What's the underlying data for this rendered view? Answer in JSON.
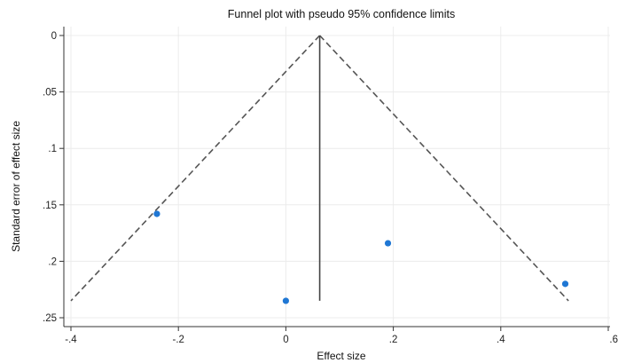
{
  "chart_data": {
    "type": "scatter",
    "title": "Funnel plot with pseudo 95% confidence limits",
    "xlabel": "Effect size",
    "ylabel": "Standard error of effect size",
    "xlim": [
      -0.4,
      0.6
    ],
    "ylim": [
      0.25,
      0
    ],
    "y_reversed": true,
    "x_ticks": [
      -0.4,
      -0.2,
      0,
      0.2,
      0.4,
      0.6
    ],
    "x_tick_labels": [
      "-.4",
      "-.2",
      "0",
      ".2",
      ".4",
      ".6"
    ],
    "y_ticks": [
      0,
      0.05,
      0.1,
      0.15,
      0.2,
      0.25
    ],
    "y_tick_labels": [
      "0",
      ".05",
      ".1",
      ".15",
      ".2",
      ".25"
    ],
    "grid": true,
    "point_color": "#1f77d4",
    "points": [
      {
        "x": -0.24,
        "y": 0.158
      },
      {
        "x": 0.0,
        "y": 0.235
      },
      {
        "x": 0.19,
        "y": 0.184
      },
      {
        "x": 0.52,
        "y": 0.22
      }
    ],
    "summary_effect": 0.063,
    "summary_line_range": [
      0,
      0.235
    ],
    "ci_limits": {
      "apex": {
        "x": 0.063,
        "y": 0
      },
      "left_end": {
        "x": -0.4,
        "y": 0.235
      },
      "right_end": {
        "x": 0.526,
        "y": 0.235
      }
    }
  }
}
